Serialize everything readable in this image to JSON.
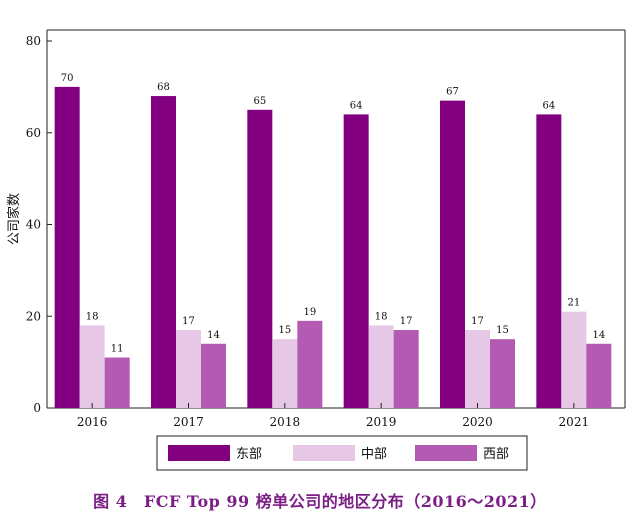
{
  "chart_data": {
    "type": "bar",
    "ylabel": "公司家数",
    "ylim": [
      0,
      80
    ],
    "yticks": [
      0,
      20,
      40,
      60,
      80
    ],
    "categories": [
      "2016",
      "2017",
      "2018",
      "2019",
      "2020",
      "2021"
    ],
    "series": [
      {
        "name": "东部",
        "color": "#820080",
        "values": [
          70,
          68,
          65,
          64,
          67,
          64
        ]
      },
      {
        "name": "中部",
        "color": "#e6c8e6",
        "values": [
          18,
          17,
          15,
          18,
          17,
          21
        ]
      },
      {
        "name": "西部",
        "color": "#b35ab3",
        "values": [
          11,
          14,
          19,
          17,
          15,
          14
        ]
      }
    ],
    "legend_position": "bottom"
  },
  "caption": "图 4　FCF Top 99 榜单公司的地区分布（2016～2021）"
}
